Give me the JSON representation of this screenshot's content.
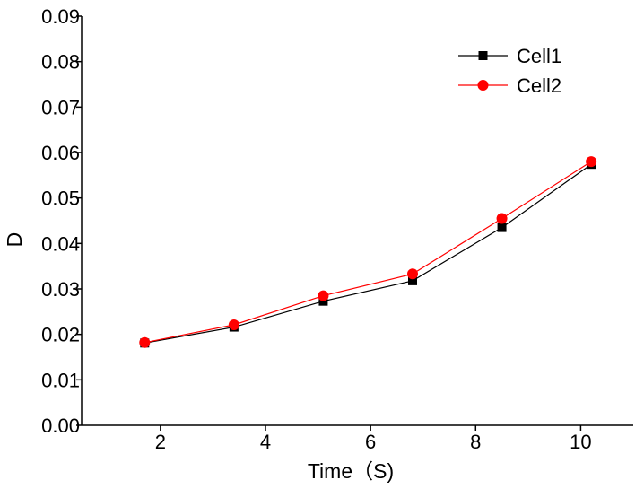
{
  "chart_data": {
    "type": "line",
    "title": "",
    "xlabel": "Time（S)",
    "ylabel": "D",
    "x": [
      1.7,
      3.4,
      5.1,
      6.8,
      8.5,
      10.2
    ],
    "xlim": [
      0.5,
      11
    ],
    "ylim": [
      0,
      0.09
    ],
    "xticks": [
      2,
      4,
      6,
      8,
      10
    ],
    "xtick_labels": [
      "2",
      "4",
      "6",
      "8",
      "10"
    ],
    "yticks": [
      0,
      0.01,
      0.02,
      0.03,
      0.04,
      0.05,
      0.06,
      0.07,
      0.08,
      0.09
    ],
    "ytick_labels": [
      "0.00",
      "0.01",
      "0.02",
      "0.03",
      "0.04",
      "0.05",
      "0.06",
      "0.07",
      "0.08",
      "0.09"
    ],
    "grid": false,
    "legend_position": "top-right",
    "series": [
      {
        "name": "Cell1",
        "marker": "square",
        "color": "#000000",
        "values": [
          0.0181,
          0.0216,
          0.0273,
          0.0318,
          0.0435,
          0.0574
        ]
      },
      {
        "name": "Cell2",
        "marker": "circle",
        "color": "#ff0000",
        "values": [
          0.0182,
          0.0221,
          0.0285,
          0.0333,
          0.0455,
          0.058
        ]
      }
    ]
  }
}
